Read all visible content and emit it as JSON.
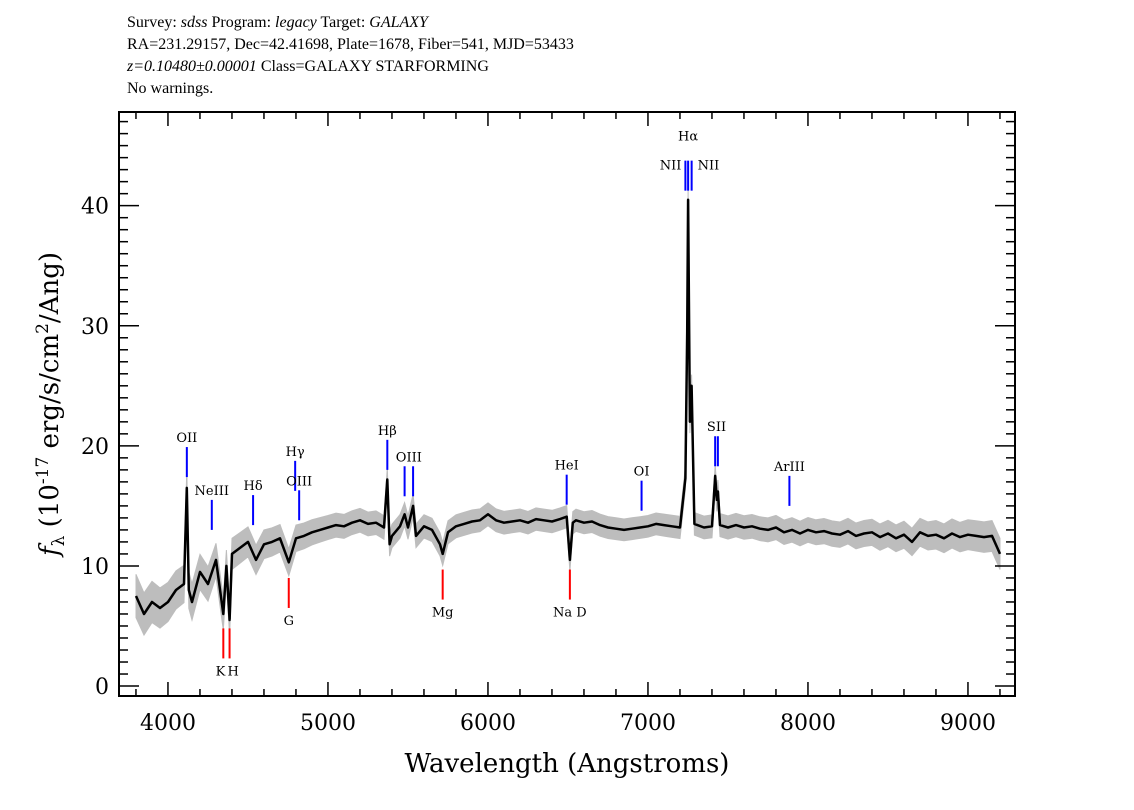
{
  "header": {
    "line1": {
      "survey_label": "Survey:",
      "survey": "sdss",
      "program_label": "Program:",
      "program": "legacy",
      "target_label": "Target:",
      "target": "GALAXY"
    },
    "line2": "RA=231.29157, Dec=42.41698, Plate=1678, Fiber=541, MJD=53433",
    "line3": {
      "redshift": "z=0.10480±0.00001",
      "class": "Class=GALAXY STARFORMING"
    },
    "line4": "No warnings."
  },
  "chart_data": {
    "type": "line",
    "xlabel": "Wavelength (Angstroms)",
    "ylabel": {
      "symbol": "f",
      "subscript": "λ",
      "unit_prefix": " (10",
      "exponent": "-17",
      "unit_mid": " erg/s/cm",
      "exponent2": "2",
      "unit_suffix": "/Ang)"
    },
    "xlim": [
      3694,
      9294
    ],
    "ylim": [
      -0.83,
      47.8
    ],
    "x_ticks": [
      "4000",
      "5000",
      "6000",
      "7000",
      "8000",
      "9000"
    ],
    "y_ticks": [
      "0",
      "10",
      "20",
      "30",
      "40"
    ],
    "grid": false,
    "colors": {
      "spectrum": "#000000",
      "uncertainty": "#bdbdbd",
      "emission": "#0000ff",
      "absorption": "#ff0000"
    },
    "spectrum": [
      [
        3800,
        7.5
      ],
      [
        3850,
        6
      ],
      [
        3900,
        7
      ],
      [
        3950,
        6.5
      ],
      [
        4000,
        7
      ],
      [
        4050,
        8
      ],
      [
        4100,
        8.5
      ],
      [
        4118,
        16.5
      ],
      [
        4130,
        8
      ],
      [
        4150,
        7
      ],
      [
        4200,
        9.5
      ],
      [
        4250,
        8.5
      ],
      [
        4300,
        10.5
      ],
      [
        4346,
        6
      ],
      [
        4365,
        10
      ],
      [
        4385,
        5.5
      ],
      [
        4400,
        11
      ],
      [
        4450,
        11.5
      ],
      [
        4500,
        12
      ],
      [
        4550,
        10.5
      ],
      [
        4600,
        11.8
      ],
      [
        4650,
        12
      ],
      [
        4700,
        12.3
      ],
      [
        4755,
        10.3
      ],
      [
        4800,
        12.3
      ],
      [
        4850,
        12.5
      ],
      [
        4900,
        12.8
      ],
      [
        4950,
        13
      ],
      [
        5000,
        13.2
      ],
      [
        5050,
        13.4
      ],
      [
        5100,
        13.3
      ],
      [
        5150,
        13.6
      ],
      [
        5200,
        13.8
      ],
      [
        5250,
        13.5
      ],
      [
        5300,
        13.6
      ],
      [
        5350,
        13.2
      ],
      [
        5371,
        17.2
      ],
      [
        5385,
        11.8
      ],
      [
        5400,
        12.5
      ],
      [
        5450,
        13.3
      ],
      [
        5479,
        14.3
      ],
      [
        5500,
        13.2
      ],
      [
        5532,
        15
      ],
      [
        5550,
        12.5
      ],
      [
        5600,
        13.3
      ],
      [
        5650,
        13
      ],
      [
        5700,
        11.8
      ],
      [
        5717,
        11
      ],
      [
        5750,
        12.8
      ],
      [
        5800,
        13.3
      ],
      [
        5850,
        13.5
      ],
      [
        5900,
        13.7
      ],
      [
        5950,
        13.8
      ],
      [
        6000,
        14.3
      ],
      [
        6050,
        13.8
      ],
      [
        6100,
        13.6
      ],
      [
        6150,
        13.7
      ],
      [
        6200,
        13.8
      ],
      [
        6250,
        13.6
      ],
      [
        6300,
        13.9
      ],
      [
        6350,
        13.8
      ],
      [
        6400,
        13.7
      ],
      [
        6450,
        13.9
      ],
      [
        6492,
        14.1
      ],
      [
        6512,
        10.5
      ],
      [
        6530,
        13.6
      ],
      [
        6550,
        13.8
      ],
      [
        6600,
        13.6
      ],
      [
        6650,
        13.7
      ],
      [
        6700,
        13.4
      ],
      [
        6750,
        13.2
      ],
      [
        6800,
        13.1
      ],
      [
        6850,
        13
      ],
      [
        6900,
        13.1
      ],
      [
        6950,
        13.2
      ],
      [
        7000,
        13.3
      ],
      [
        7050,
        13.5
      ],
      [
        7100,
        13.4
      ],
      [
        7150,
        13.3
      ],
      [
        7200,
        13.2
      ],
      [
        7234,
        17.3
      ],
      [
        7245,
        29.5
      ],
      [
        7251,
        40.5
      ],
      [
        7262,
        22
      ],
      [
        7273,
        25
      ],
      [
        7290,
        13.5
      ],
      [
        7350,
        13.2
      ],
      [
        7400,
        13.3
      ],
      [
        7420,
        17.5
      ],
      [
        7430,
        15.5
      ],
      [
        7437,
        16.2
      ],
      [
        7450,
        13.4
      ],
      [
        7500,
        13.2
      ],
      [
        7550,
        13.4
      ],
      [
        7600,
        13.2
      ],
      [
        7650,
        13.3
      ],
      [
        7700,
        13.1
      ],
      [
        7750,
        13
      ],
      [
        7800,
        13.2
      ],
      [
        7850,
        12.8
      ],
      [
        7900,
        13
      ],
      [
        7950,
        12.7
      ],
      [
        8000,
        13
      ],
      [
        8050,
        12.8
      ],
      [
        8100,
        12.9
      ],
      [
        8150,
        12.7
      ],
      [
        8200,
        12.6
      ],
      [
        8250,
        12.9
      ],
      [
        8300,
        12.5
      ],
      [
        8350,
        12.7
      ],
      [
        8400,
        12.8
      ],
      [
        8450,
        12.4
      ],
      [
        8500,
        12.7
      ],
      [
        8550,
        12.3
      ],
      [
        8600,
        12.6
      ],
      [
        8650,
        12
      ],
      [
        8700,
        12.8
      ],
      [
        8750,
        12.5
      ],
      [
        8800,
        12.6
      ],
      [
        8850,
        12.3
      ],
      [
        8900,
        12.7
      ],
      [
        8950,
        12.4
      ],
      [
        9000,
        12.6
      ],
      [
        9050,
        12.5
      ],
      [
        9100,
        12.4
      ],
      [
        9150,
        12.5
      ],
      [
        9200,
        11
      ]
    ],
    "uncertainty": [
      [
        3800,
        1.8
      ],
      [
        4400,
        1.3
      ],
      [
        5000,
        1.0
      ],
      [
        7000,
        0.9
      ],
      [
        8500,
        1.1
      ],
      [
        9200,
        1.3
      ]
    ],
    "lines": [
      {
        "label": "OII",
        "kind": "emission",
        "wavelengths": [
          4118
        ],
        "flux_range": [
          17.4,
          19.9
        ],
        "label_pos": "above"
      },
      {
        "label": "NeIII",
        "kind": "emission",
        "wavelengths": [
          4274
        ],
        "flux_range": [
          13,
          15.5
        ],
        "label_pos": "above"
      },
      {
        "label": "Hδ",
        "kind": "emission",
        "wavelengths": [
          4532
        ],
        "flux_range": [
          13.4,
          15.9
        ],
        "label_pos": "above"
      },
      {
        "label": "Hγ",
        "kind": "emission",
        "wavelengths": [
          4795
        ],
        "flux_range": [
          16.25,
          18.75
        ],
        "label_pos": "above"
      },
      {
        "label": "OIII",
        "kind": "emission",
        "wavelengths": [
          4820
        ],
        "flux_range": [
          13.8,
          16.3
        ],
        "label_pos": "above"
      },
      {
        "label": "Hβ",
        "kind": "emission",
        "wavelengths": [
          5371
        ],
        "flux_range": [
          18,
          20.5
        ],
        "label_pos": "above"
      },
      {
        "label": "OIII",
        "kind": "emission",
        "wavelengths": [
          5479,
          5532
        ],
        "flux_range": [
          15.8,
          18.3
        ],
        "label_pos": "above"
      },
      {
        "label": "HeI",
        "kind": "emission",
        "wavelengths": [
          6492
        ],
        "flux_range": [
          15.1,
          17.6
        ],
        "label_pos": "above"
      },
      {
        "label": "OI",
        "kind": "emission",
        "wavelengths": [
          6960
        ],
        "flux_range": [
          14.6,
          17.1
        ],
        "label_pos": "above"
      },
      {
        "label": "NII",
        "kind": "emission",
        "wavelengths": [
          7234
        ],
        "flux_range": [
          41.25,
          43.75
        ],
        "label_pos": "left"
      },
      {
        "label": "Hα",
        "kind": "emission",
        "wavelengths": [
          7251
        ],
        "flux_range": [
          41.25,
          43.75
        ],
        "label_pos": "top"
      },
      {
        "label": "NII",
        "kind": "emission",
        "wavelengths": [
          7273
        ],
        "flux_range": [
          41.25,
          43.75
        ],
        "label_pos": "right"
      },
      {
        "label": "SII",
        "kind": "emission",
        "wavelengths": [
          7420,
          7437
        ],
        "flux_range": [
          18.3,
          20.8
        ],
        "label_pos": "above"
      },
      {
        "label": "ArIII",
        "kind": "emission",
        "wavelengths": [
          7884
        ],
        "flux_range": [
          15,
          17.5
        ],
        "label_pos": "above"
      },
      {
        "label": "K",
        "kind": "absorption",
        "wavelengths": [
          4346
        ],
        "flux_range": [
          2.3,
          4.8
        ],
        "label_pos": "below-left"
      },
      {
        "label": "H",
        "kind": "absorption",
        "wavelengths": [
          4385
        ],
        "flux_range": [
          2.3,
          4.8
        ],
        "label_pos": "below-right"
      },
      {
        "label": "G",
        "kind": "absorption",
        "wavelengths": [
          4755
        ],
        "flux_range": [
          6.5,
          9
        ],
        "label_pos": "below"
      },
      {
        "label": "Mg",
        "kind": "absorption",
        "wavelengths": [
          5717
        ],
        "flux_range": [
          7.2,
          9.7
        ],
        "label_pos": "below"
      },
      {
        "label": "Na D",
        "kind": "absorption",
        "wavelengths": [
          6512
        ],
        "flux_range": [
          7.2,
          9.7
        ],
        "label_pos": "below"
      }
    ]
  }
}
